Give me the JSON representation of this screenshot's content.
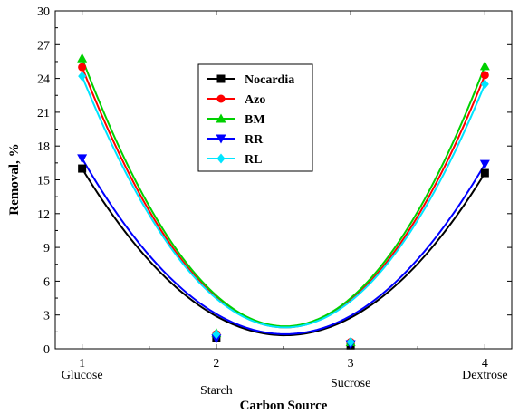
{
  "chart_data": {
    "type": "line",
    "title": "",
    "xlabel": "Carbon Source",
    "ylabel": "Removal, %",
    "x_ticks": [
      "1",
      "2",
      "3",
      "4"
    ],
    "categories": [
      "Glucose",
      "Starch",
      "Sucrose",
      "Dextrose"
    ],
    "xlim": [
      0.8,
      4.2
    ],
    "ylim": [
      0,
      30
    ],
    "y_ticks": [
      0,
      3,
      6,
      9,
      12,
      15,
      18,
      21,
      24,
      27,
      30
    ],
    "grid": false,
    "legend_position": "top-center",
    "fit": "quadratic",
    "series": [
      {
        "name": "Nocardia",
        "color": "#000000",
        "marker": "square",
        "values": [
          16.0,
          1.0,
          0.3,
          15.6
        ],
        "curve_min": 1.2
      },
      {
        "name": "Azo",
        "color": "#ff0000",
        "marker": "circle",
        "values": [
          25.0,
          1.3,
          0.6,
          24.3
        ],
        "curve_min": 1.9
      },
      {
        "name": "BM",
        "color": "#00d000",
        "marker": "triangle-up",
        "values": [
          25.8,
          1.4,
          0.6,
          25.1
        ],
        "curve_min": 2.0
      },
      {
        "name": "RR",
        "color": "#0000ff",
        "marker": "triangle-down",
        "values": [
          16.9,
          0.9,
          0.4,
          16.4
        ],
        "curve_min": 1.3
      },
      {
        "name": "RL",
        "color": "#00e5ff",
        "marker": "diamond",
        "values": [
          24.2,
          1.3,
          0.6,
          23.5
        ],
        "curve_min": 1.9
      }
    ]
  }
}
